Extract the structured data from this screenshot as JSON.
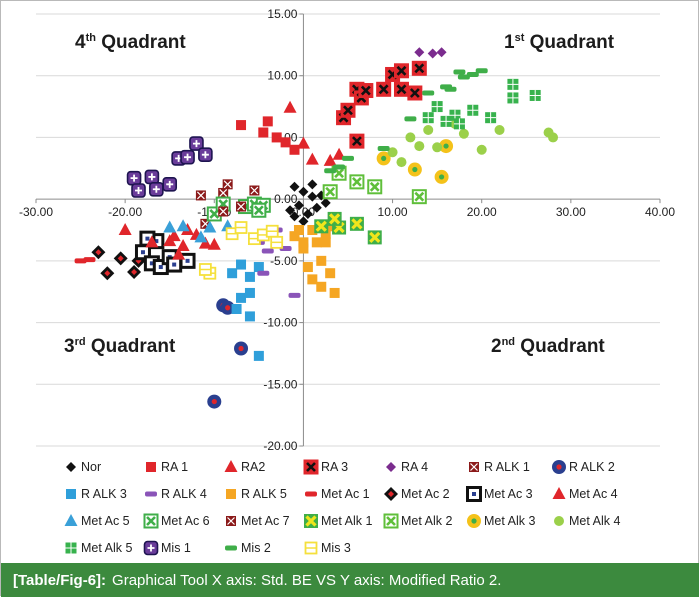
{
  "caption": {
    "tag": "[Table/Fig-6]:",
    "text": "Graphical Tool X axis: Std. BE VS Y axis: Modified Ratio 2."
  },
  "colors": {
    "caption_bg": "#3c8a3e",
    "caption_text": "#ffffff",
    "gridline": "#d9d9d9",
    "axis": "#8c8c8c"
  },
  "quadrants": {
    "q4": {
      "base": "4",
      "sup": "th",
      "rest": " Quadrant"
    },
    "q1": {
      "base": "1",
      "sup": "st",
      "rest": " Quadrant"
    },
    "q3": {
      "base": "3",
      "sup": "rd",
      "rest": " Quadrant"
    },
    "q2": {
      "base": "2",
      "sup": "nd",
      "rest": " Quadrant"
    }
  },
  "chart_data": {
    "type": "scatter",
    "title": "",
    "xlabel": "",
    "ylabel": "",
    "xlim": [
      -30,
      40
    ],
    "ylim": [
      -20,
      15
    ],
    "x_ticks": [
      -30,
      -20,
      -10,
      0,
      10,
      20,
      30,
      40
    ],
    "y_ticks": [
      -20,
      -15,
      -10,
      -5,
      0,
      5,
      10,
      15
    ],
    "x_tick_labels": [
      "-30.00",
      "-20.00",
      "-10.00",
      "0.00",
      "10.00",
      "20.00",
      "30.00",
      "40.00"
    ],
    "y_tick_labels": [
      "-20.00",
      "-15.00",
      "-10.00",
      "-5.00",
      "0.00",
      "5.00",
      "10.00",
      "15.00"
    ],
    "grid": "horizontal",
    "legend_position": "bottom",
    "series": [
      {
        "name": "Nor",
        "marker": "diamond",
        "color": "#111111",
        "points": [
          [
            -1,
            1
          ],
          [
            0,
            0.6
          ],
          [
            1,
            0.2
          ],
          [
            -0.5,
            -0.5
          ],
          [
            1.5,
            -0.7
          ],
          [
            0.5,
            -1.2
          ],
          [
            -1.5,
            -0.9
          ],
          [
            2,
            0.3
          ],
          [
            0,
            -1.8
          ],
          [
            1,
            1.2
          ],
          [
            -1,
            -1.4
          ],
          [
            2.5,
            -0.3
          ]
        ]
      },
      {
        "name": "RA 1",
        "marker": "square",
        "color": "#e0262b",
        "points": [
          [
            -7,
            6
          ],
          [
            -4,
            6.3
          ],
          [
            -4.5,
            5.4
          ],
          [
            -3,
            5
          ],
          [
            -2,
            4.6
          ],
          [
            -1,
            4
          ]
        ]
      },
      {
        "name": "RA2",
        "marker": "triangle",
        "color": "#e0262b",
        "points": [
          [
            -1.5,
            7.4
          ],
          [
            0,
            4.5
          ],
          [
            1,
            3.2
          ],
          [
            3,
            3.1
          ],
          [
            4,
            3.6
          ]
        ]
      },
      {
        "name": "RA 3",
        "marker": "boxcross",
        "color": "#e0262b",
        "points": [
          [
            4.5,
            6.6
          ],
          [
            5,
            7.2
          ],
          [
            6,
            8.9
          ],
          [
            6.5,
            8.2
          ],
          [
            7,
            8.8
          ],
          [
            9,
            8.9
          ],
          [
            10,
            10.1
          ],
          [
            11,
            10.4
          ],
          [
            11,
            8.9
          ],
          [
            12.5,
            8.6
          ],
          [
            13,
            10.6
          ],
          [
            6,
            4.7
          ]
        ]
      },
      {
        "name": "RA 4",
        "marker": "diamond",
        "color": "#7b2c8e",
        "points": [
          [
            13,
            11.9
          ],
          [
            14.5,
            11.8
          ],
          [
            15.5,
            11.9
          ]
        ]
      },
      {
        "name": "R ALK 1",
        "marker": "xcross",
        "color": "#8b1a1a",
        "points": [
          [
            -8.5,
            1.2
          ],
          [
            -9,
            0.5
          ],
          [
            -5.5,
            0.7
          ],
          [
            -5,
            -0.4
          ],
          [
            -11,
            -2
          ]
        ]
      },
      {
        "name": "R ALK 2",
        "marker": "ringdot",
        "color": "#2a3f8f",
        "points": [
          [
            -9,
            -8.6
          ],
          [
            -7,
            -12.1
          ],
          [
            -10,
            -16.4
          ],
          [
            -8.5,
            -8.8
          ]
        ]
      },
      {
        "name": "R ALK 3",
        "marker": "square",
        "color": "#2f9fda",
        "points": [
          [
            -8,
            -6
          ],
          [
            -7,
            -5.3
          ],
          [
            -6,
            -6.3
          ],
          [
            -7,
            -8
          ],
          [
            -7.5,
            -8.9
          ],
          [
            -6,
            -9.5
          ],
          [
            -5,
            -12.7
          ],
          [
            -5,
            -5.5
          ],
          [
            -6,
            -7.6
          ]
        ]
      },
      {
        "name": "R ALK 4",
        "marker": "dash",
        "color": "#8a54b8",
        "points": [
          [
            -5,
            -3.5
          ],
          [
            -4,
            -4.2
          ],
          [
            -3,
            -3.8
          ],
          [
            -4.5,
            -6
          ],
          [
            -1,
            -7.8
          ],
          [
            -2,
            -4
          ],
          [
            -3,
            -2.5
          ]
        ]
      },
      {
        "name": "R ALK 5",
        "marker": "square",
        "color": "#f5a623",
        "points": [
          [
            -1,
            -3
          ],
          [
            0,
            -4
          ],
          [
            1,
            -2.5
          ],
          [
            2,
            -5
          ],
          [
            3,
            -6
          ],
          [
            1.5,
            -3.5
          ],
          [
            2.5,
            -2.8
          ],
          [
            0.5,
            -5.5
          ],
          [
            3.5,
            -7.6
          ],
          [
            2,
            -7.1
          ],
          [
            1,
            -6.5
          ],
          [
            -0.5,
            -2.5
          ],
          [
            2.5,
            -3.5
          ],
          [
            3,
            -2.2
          ],
          [
            0,
            -3.5
          ]
        ]
      },
      {
        "name": "Met Ac 1",
        "marker": "dash",
        "color": "#e0262b",
        "points": [
          [
            -25,
            -5
          ],
          [
            -24,
            -4.9
          ]
        ]
      },
      {
        "name": "Met Ac 2",
        "marker": "diamondbold",
        "color": "#111111",
        "points": [
          [
            -23,
            -4.3
          ],
          [
            -22,
            -6
          ],
          [
            -20.5,
            -4.8
          ],
          [
            -19,
            -5.9
          ],
          [
            -18.5,
            -5
          ]
        ]
      },
      {
        "name": "Met Ac 3",
        "marker": "squarebold",
        "color": "#111111",
        "points": [
          [
            -18,
            -4.3
          ],
          [
            -17,
            -5.2
          ],
          [
            -16,
            -5.5
          ],
          [
            -15,
            -4.7
          ],
          [
            -16.5,
            -3.4
          ],
          [
            -14.5,
            -5.3
          ],
          [
            -17.5,
            -3.2
          ],
          [
            -13,
            -5
          ]
        ]
      },
      {
        "name": "Met Ac 4",
        "marker": "triangle",
        "color": "#e0262b",
        "points": [
          [
            -20,
            -2.5
          ],
          [
            -17,
            -3.5
          ],
          [
            -14.5,
            -3
          ],
          [
            -13.5,
            -3.8
          ],
          [
            -13,
            -2.5
          ],
          [
            -12,
            -2.9
          ],
          [
            -11,
            -3.6
          ],
          [
            -10,
            -3.7
          ],
          [
            -14,
            -4.5
          ],
          [
            -15,
            -3.4
          ]
        ]
      },
      {
        "name": "Met Ac 5",
        "marker": "triangle",
        "color": "#3aa0d8",
        "points": [
          [
            -15,
            -2.3
          ],
          [
            -13.5,
            -2.2
          ],
          [
            -10.5,
            -2.3
          ],
          [
            -8.5,
            -2.2
          ],
          [
            -11.5,
            -3.1
          ]
        ]
      },
      {
        "name": "Met Ac 6",
        "marker": "boxcross",
        "color": "#3fae49",
        "points": [
          [
            -10,
            -1.2
          ],
          [
            -9,
            -0.4
          ],
          [
            -6.5,
            -0.6
          ],
          [
            -5.5,
            -0.4
          ],
          [
            -4.5,
            -0.5
          ],
          [
            -5,
            -0.9
          ]
        ]
      },
      {
        "name": "Met Ac 7",
        "marker": "xcross",
        "color": "#8b1a1a",
        "points": [
          [
            -9,
            -1
          ],
          [
            -7,
            -0.6
          ],
          [
            -11.5,
            0.3
          ]
        ]
      },
      {
        "name": "Met Alk 1",
        "marker": "boxcrossyellow",
        "color": "#f0e51c",
        "points": [
          [
            2,
            -2.2
          ],
          [
            4,
            -2.3
          ],
          [
            6,
            -2
          ],
          [
            8,
            -3.1
          ],
          [
            3.5,
            -1.6
          ]
        ]
      },
      {
        "name": "Met Alk 2",
        "marker": "boxcross",
        "color": "#5fbf3a",
        "points": [
          [
            4,
            2.1
          ],
          [
            6,
            1.4
          ],
          [
            8,
            1
          ],
          [
            13,
            0.2
          ],
          [
            3,
            0.6
          ]
        ]
      },
      {
        "name": "Met Alk 3",
        "marker": "ringdot",
        "color": "#f4c21a",
        "points": [
          [
            9,
            3.3
          ],
          [
            12.5,
            2.4
          ],
          [
            15.5,
            1.8
          ],
          [
            16,
            4.3
          ]
        ]
      },
      {
        "name": "Met Alk 4",
        "marker": "dot",
        "color": "#9bd04a",
        "points": [
          [
            12,
            5
          ],
          [
            13,
            4.3
          ],
          [
            14,
            5.6
          ],
          [
            15,
            4.2
          ],
          [
            17,
            6.1
          ],
          [
            18,
            5.3
          ],
          [
            20,
            4
          ],
          [
            22,
            5.6
          ],
          [
            27.5,
            5.4
          ],
          [
            28,
            5
          ],
          [
            10,
            3.8
          ],
          [
            11,
            3
          ]
        ]
      },
      {
        "name": "Met Alk 5",
        "marker": "squaregrid",
        "color": "#37b24d",
        "points": [
          [
            14,
            6.6
          ],
          [
            15,
            7.5
          ],
          [
            16,
            6.3
          ],
          [
            17,
            6.8
          ],
          [
            19,
            7.2
          ],
          [
            21,
            6.6
          ],
          [
            23.5,
            9.3
          ],
          [
            23.5,
            8.2
          ],
          [
            26,
            8.4
          ],
          [
            17.5,
            6.1
          ]
        ]
      },
      {
        "name": "Mis 1",
        "marker": "squareplus",
        "color": "#6a3c9a",
        "points": [
          [
            -19,
            1.7
          ],
          [
            -18.5,
            0.7
          ],
          [
            -17,
            1.8
          ],
          [
            -16.5,
            0.8
          ],
          [
            -15,
            1.2
          ],
          [
            -14,
            3.3
          ],
          [
            -13,
            3.4
          ],
          [
            -12,
            4.5
          ],
          [
            -11,
            3.6
          ]
        ]
      },
      {
        "name": "Mis 2",
        "marker": "dash",
        "color": "#3fae49",
        "points": [
          [
            12,
            6.5
          ],
          [
            14,
            8.6
          ],
          [
            16,
            9.1
          ],
          [
            18,
            9.9
          ],
          [
            19,
            10.1
          ],
          [
            20,
            10.4
          ],
          [
            17.5,
            10.3
          ],
          [
            16.5,
            8.9
          ],
          [
            9,
            4.1
          ],
          [
            5,
            3.3
          ],
          [
            4,
            2.6
          ],
          [
            3,
            2.3
          ]
        ]
      },
      {
        "name": "Mis 3",
        "marker": "hash",
        "color": "#f5e03c",
        "points": [
          [
            -8,
            -2.8
          ],
          [
            -7,
            -2.3
          ],
          [
            -5.5,
            -3.2
          ],
          [
            -4.5,
            -2.9
          ],
          [
            -3.5,
            -2.6
          ],
          [
            -10.5,
            -6
          ],
          [
            -11,
            -5.7
          ],
          [
            -3,
            -3.5
          ]
        ]
      }
    ]
  }
}
